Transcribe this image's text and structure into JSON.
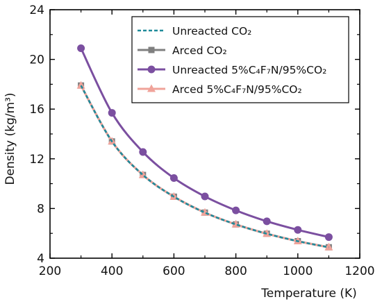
{
  "chart_data": {
    "type": "line",
    "xlabel": "Temperature (K)",
    "ylabel": "Density (kg/m³)",
    "xlim": [
      200,
      1200
    ],
    "ylim": [
      4,
      24
    ],
    "xticks": [
      200,
      400,
      600,
      800,
      1000,
      1200
    ],
    "yticks": [
      4,
      8,
      12,
      16,
      20,
      24
    ],
    "grid": false,
    "legend_position": "top-right",
    "x": [
      300,
      400,
      500,
      600,
      700,
      800,
      900,
      1000,
      1100
    ],
    "series": [
      {
        "name": "Unreacted CO₂",
        "style": "dashed",
        "marker": "none",
        "color": "#1f8a9a",
        "values": [
          17.9,
          13.4,
          10.7,
          8.95,
          7.67,
          6.72,
          5.97,
          5.37,
          4.88
        ]
      },
      {
        "name": "Arced CO₂",
        "style": "solid",
        "marker": "square",
        "color": "#7f7f7f",
        "values": [
          17.9,
          13.4,
          10.7,
          8.95,
          7.67,
          6.72,
          5.97,
          5.37,
          4.88
        ]
      },
      {
        "name": "Unreacted 5%C₄F₇N/95%CO₂",
        "style": "solid",
        "marker": "circle",
        "color": "#7b4fa0",
        "values": [
          20.9,
          15.7,
          12.55,
          10.45,
          8.97,
          7.85,
          6.97,
          6.28,
          5.7
        ]
      },
      {
        "name": "Arced 5%C₄F₇N/95%CO₂",
        "style": "solid",
        "marker": "triangle",
        "color": "#f0a39a",
        "values": [
          17.9,
          13.4,
          10.7,
          8.95,
          7.67,
          6.72,
          5.97,
          5.37,
          4.88
        ]
      }
    ]
  }
}
